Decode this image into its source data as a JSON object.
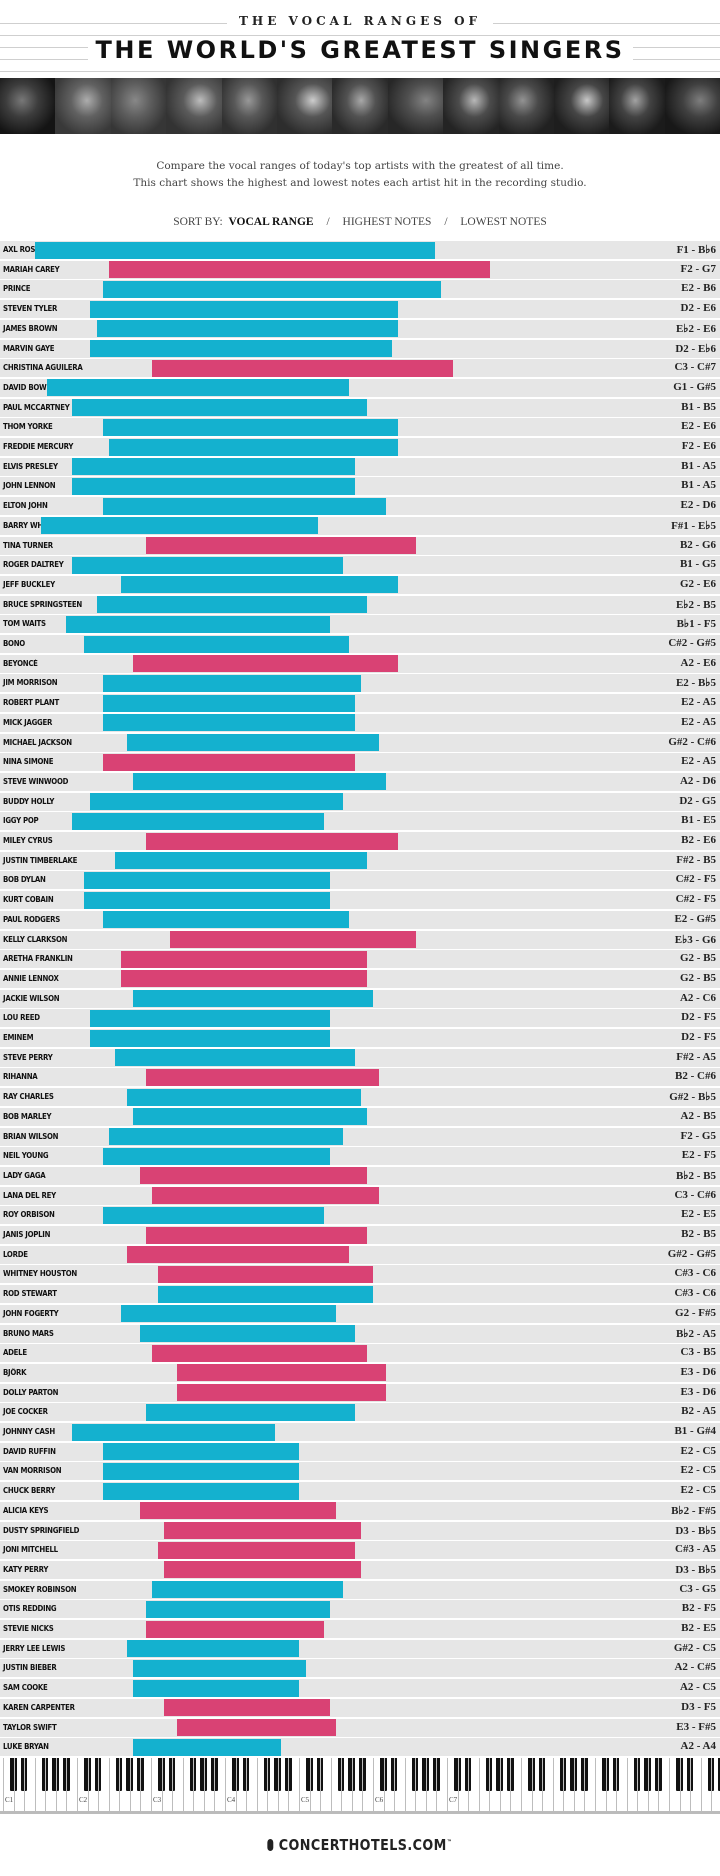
{
  "header": {
    "kicker": "THE VOCAL RANGES OF",
    "title": "THE WORLD'S GREATEST SINGERS",
    "description_line1": "Compare the vocal ranges of today's top artists with the greatest of all time.",
    "description_line2": "This chart shows the highest and lowest notes each artist hit in the recording studio."
  },
  "sort": {
    "label": "SORT BY:",
    "options": [
      "VOCAL RANGE",
      "HIGHEST NOTES",
      "LOWEST NOTES"
    ],
    "active": "VOCAL RANGE"
  },
  "colors": {
    "male": "#14b1cf",
    "female": "#d94274",
    "row_bg": "#e6e6e6"
  },
  "footer": {
    "brand": "CONCERTHOTELS.COM",
    "trademark": "™",
    "icon": "microphone-icon"
  },
  "chart_data": {
    "type": "bar",
    "orientation": "horizontal floating range",
    "x_axis": {
      "tick_labels": [
        "C1",
        "C2",
        "C3",
        "C4",
        "C5",
        "C6",
        "C7"
      ],
      "range": [
        "C1",
        "C7+"
      ]
    },
    "groups": {
      "cyan": "male",
      "pink": "female"
    },
    "rows": [
      {
        "name": "AXL ROSE",
        "low": "F1",
        "high": "B♭6",
        "label": "F1 - B♭6",
        "color": "cyan"
      },
      {
        "name": "MARIAH CAREY",
        "low": "F2",
        "high": "G7",
        "label": "F2 - G7",
        "color": "pink"
      },
      {
        "name": "PRINCE",
        "low": "E2",
        "high": "B6",
        "label": "E2 - B6",
        "color": "cyan"
      },
      {
        "name": "STEVEN TYLER",
        "low": "D2",
        "high": "E6",
        "label": "D2 - E6",
        "color": "cyan"
      },
      {
        "name": "JAMES BROWN",
        "low": "E♭2",
        "high": "E6",
        "label": "E♭2 - E6",
        "color": "cyan"
      },
      {
        "name": "MARVIN GAYE",
        "low": "D2",
        "high": "E♭6",
        "label": "D2 - E♭6",
        "color": "cyan"
      },
      {
        "name": "CHRISTINA AGUILERA",
        "low": "C3",
        "high": "C#7",
        "label": "C3 - C#7",
        "color": "pink"
      },
      {
        "name": "DAVID BOWIE",
        "low": "G1",
        "high": "G#5",
        "label": "G1 - G#5",
        "color": "cyan"
      },
      {
        "name": "PAUL MCCARTNEY",
        "low": "B1",
        "high": "B5",
        "label": "B1 - B5",
        "color": "cyan"
      },
      {
        "name": "THOM YORKE",
        "low": "E2",
        "high": "E6",
        "label": "E2 - E6",
        "color": "cyan"
      },
      {
        "name": "FREDDIE MERCURY",
        "low": "F2",
        "high": "E6",
        "label": "F2 - E6",
        "color": "cyan"
      },
      {
        "name": "ELVIS PRESLEY",
        "low": "B1",
        "high": "A5",
        "label": "B1 - A5",
        "color": "cyan"
      },
      {
        "name": "JOHN LENNON",
        "low": "B1",
        "high": "A5",
        "label": "B1 - A5",
        "color": "cyan"
      },
      {
        "name": "ELTON JOHN",
        "low": "E2",
        "high": "D6",
        "label": "E2 - D6",
        "color": "cyan"
      },
      {
        "name": "BARRY WHITE",
        "low": "F#1",
        "high": "E♭5",
        "label": "F#1 - E♭5",
        "color": "cyan"
      },
      {
        "name": "TINA TURNER",
        "low": "B2",
        "high": "G6",
        "label": "B2 - G6",
        "color": "pink"
      },
      {
        "name": "ROGER DALTREY",
        "low": "B1",
        "high": "G5",
        "label": "B1 - G5",
        "color": "cyan"
      },
      {
        "name": "JEFF BUCKLEY",
        "low": "G2",
        "high": "E6",
        "label": "G2 - E6",
        "color": "cyan"
      },
      {
        "name": "BRUCE SPRINGSTEEN",
        "low": "E♭2",
        "high": "B5",
        "label": "E♭2 - B5",
        "color": "cyan"
      },
      {
        "name": "TOM WAITS",
        "low": "B♭1",
        "high": "F5",
        "label": "B♭1 - F5",
        "color": "cyan"
      },
      {
        "name": "BONO",
        "low": "C#2",
        "high": "G#5",
        "label": "C#2 - G#5",
        "color": "cyan"
      },
      {
        "name": "BEYONCÉ",
        "low": "A2",
        "high": "E6",
        "label": "A2 - E6",
        "color": "pink"
      },
      {
        "name": "JIM MORRISON",
        "low": "E2",
        "high": "B♭5",
        "label": "E2 - B♭5",
        "color": "cyan"
      },
      {
        "name": "ROBERT PLANT",
        "low": "E2",
        "high": "A5",
        "label": "E2 - A5",
        "color": "cyan"
      },
      {
        "name": "MICK JAGGER",
        "low": "E2",
        "high": "A5",
        "label": "E2 - A5",
        "color": "cyan"
      },
      {
        "name": "MICHAEL JACKSON",
        "low": "G#2",
        "high": "C#6",
        "label": "G#2 - C#6",
        "color": "cyan"
      },
      {
        "name": "NINA SIMONE",
        "low": "E2",
        "high": "A5",
        "label": "E2 - A5",
        "color": "pink"
      },
      {
        "name": "STEVE WINWOOD",
        "low": "A2",
        "high": "D6",
        "label": "A2 - D6",
        "color": "cyan"
      },
      {
        "name": "BUDDY HOLLY",
        "low": "D2",
        "high": "G5",
        "label": "D2 - G5",
        "color": "cyan"
      },
      {
        "name": "IGGY POP",
        "low": "B1",
        "high": "E5",
        "label": "B1 - E5",
        "color": "cyan"
      },
      {
        "name": "MILEY CYRUS",
        "low": "B2",
        "high": "E6",
        "label": "B2 - E6",
        "color": "pink"
      },
      {
        "name": "JUSTIN TIMBERLAKE",
        "low": "F#2",
        "high": "B5",
        "label": "F#2 - B5",
        "color": "cyan"
      },
      {
        "name": "BOB DYLAN",
        "low": "C#2",
        "high": "F5",
        "label": "C#2 - F5",
        "color": "cyan"
      },
      {
        "name": "KURT COBAIN",
        "low": "C#2",
        "high": "F5",
        "label": "C#2 - F5",
        "color": "cyan"
      },
      {
        "name": "PAUL RODGERS",
        "low": "E2",
        "high": "G#5",
        "label": "E2 - G#5",
        "color": "cyan"
      },
      {
        "name": "KELLY CLARKSON",
        "low": "E♭3",
        "high": "G6",
        "label": "E♭3 - G6",
        "color": "pink"
      },
      {
        "name": "ARETHA FRANKLIN",
        "low": "G2",
        "high": "B5",
        "label": "G2 - B5",
        "color": "pink"
      },
      {
        "name": "ANNIE LENNOX",
        "low": "G2",
        "high": "B5",
        "label": "G2 - B5",
        "color": "pink"
      },
      {
        "name": "JACKIE WILSON",
        "low": "A2",
        "high": "C6",
        "label": "A2 - C6",
        "color": "cyan"
      },
      {
        "name": "LOU REED",
        "low": "D2",
        "high": "F5",
        "label": "D2 - F5",
        "color": "cyan"
      },
      {
        "name": "EMINEM",
        "low": "D2",
        "high": "F5",
        "label": "D2 - F5",
        "color": "cyan"
      },
      {
        "name": "STEVE PERRY",
        "low": "F#2",
        "high": "A5",
        "label": "F#2 - A5",
        "color": "cyan"
      },
      {
        "name": "RIHANNA",
        "low": "B2",
        "high": "C#6",
        "label": "B2 - C#6",
        "color": "pink"
      },
      {
        "name": "RAY CHARLES",
        "low": "G#2",
        "high": "B♭5",
        "label": "G#2 - B♭5",
        "color": "cyan"
      },
      {
        "name": "BOB MARLEY",
        "low": "A2",
        "high": "B5",
        "label": "A2 - B5",
        "color": "cyan"
      },
      {
        "name": "BRIAN WILSON",
        "low": "F2",
        "high": "G5",
        "label": "F2 - G5",
        "color": "cyan"
      },
      {
        "name": "NEIL YOUNG",
        "low": "E2",
        "high": "F5",
        "label": "E2 - F5",
        "color": "cyan"
      },
      {
        "name": "LADY GAGA",
        "low": "B♭2",
        "high": "B5",
        "label": "B♭2 - B5",
        "color": "pink"
      },
      {
        "name": "LANA DEL REY",
        "low": "C3",
        "high": "C#6",
        "label": "C3 - C#6",
        "color": "pink"
      },
      {
        "name": "ROY ORBISON",
        "low": "E2",
        "high": "E5",
        "label": "E2 - E5",
        "color": "cyan"
      },
      {
        "name": "JANIS JOPLIN",
        "low": "B2",
        "high": "B5",
        "label": "B2 - B5",
        "color": "pink"
      },
      {
        "name": "LORDE",
        "low": "G#2",
        "high": "G#5",
        "label": "G#2 - G#5",
        "color": "pink"
      },
      {
        "name": "WHITNEY HOUSTON",
        "low": "C#3",
        "high": "C6",
        "label": "C#3 - C6",
        "color": "pink"
      },
      {
        "name": "ROD STEWART",
        "low": "C#3",
        "high": "C6",
        "label": "C#3 - C6",
        "color": "cyan"
      },
      {
        "name": "JOHN FOGERTY",
        "low": "G2",
        "high": "F#5",
        "label": "G2 - F#5",
        "color": "cyan"
      },
      {
        "name": "BRUNO MARS",
        "low": "B♭2",
        "high": "A5",
        "label": "B♭2 - A5",
        "color": "cyan"
      },
      {
        "name": "ADELE",
        "low": "C3",
        "high": "B5",
        "label": "C3 - B5",
        "color": "pink"
      },
      {
        "name": "BJÖRK",
        "low": "E3",
        "high": "D6",
        "label": "E3 - D6",
        "color": "pink"
      },
      {
        "name": "DOLLY PARTON",
        "low": "E3",
        "high": "D6",
        "label": "E3 - D6",
        "color": "pink"
      },
      {
        "name": "JOE COCKER",
        "low": "B2",
        "high": "A5",
        "label": "B2 - A5",
        "color": "cyan"
      },
      {
        "name": "JOHNNY CASH",
        "low": "B1",
        "high": "G#4",
        "label": "B1 - G#4",
        "color": "cyan"
      },
      {
        "name": "DAVID RUFFIN",
        "low": "E2",
        "high": "C5",
        "label": "E2 - C5",
        "color": "cyan"
      },
      {
        "name": "VAN MORRISON",
        "low": "E2",
        "high": "C5",
        "label": "E2 - C5",
        "color": "cyan"
      },
      {
        "name": "CHUCK BERRY",
        "low": "E2",
        "high": "C5",
        "label": "E2 - C5",
        "color": "cyan"
      },
      {
        "name": "ALICIA KEYS",
        "low": "B♭2",
        "high": "F#5",
        "label": "B♭2 - F#5",
        "color": "pink"
      },
      {
        "name": "DUSTY SPRINGFIELD",
        "low": "D3",
        "high": "B♭5",
        "label": "D3 - B♭5",
        "color": "pink"
      },
      {
        "name": "JONI MITCHELL",
        "low": "C#3",
        "high": "A5",
        "label": "C#3 - A5",
        "color": "pink"
      },
      {
        "name": "KATY PERRY",
        "low": "D3",
        "high": "B♭5",
        "label": "D3 - B♭5",
        "color": "pink"
      },
      {
        "name": "SMOKEY ROBINSON",
        "low": "C3",
        "high": "G5",
        "label": "C3 - G5",
        "color": "cyan"
      },
      {
        "name": "OTIS REDDING",
        "low": "B2",
        "high": "F5",
        "label": "B2 - F5",
        "color": "cyan"
      },
      {
        "name": "STEVIE NICKS",
        "low": "B2",
        "high": "E5",
        "label": "B2 - E5",
        "color": "pink"
      },
      {
        "name": "JERRY LEE LEWIS",
        "low": "G#2",
        "high": "C5",
        "label": "G#2 - C5",
        "color": "cyan"
      },
      {
        "name": "JUSTIN BIEBER",
        "low": "A2",
        "high": "C#5",
        "label": "A2 - C#5",
        "color": "cyan"
      },
      {
        "name": "SAM COOKE",
        "low": "A2",
        "high": "C5",
        "label": "A2 - C5",
        "color": "cyan"
      },
      {
        "name": "KAREN CARPENTER",
        "low": "D3",
        "high": "F5",
        "label": "D3 - F5",
        "color": "pink"
      },
      {
        "name": "TAYLOR SWIFT",
        "low": "E3",
        "high": "F#5",
        "label": "E3 - F#5",
        "color": "pink"
      },
      {
        "name": "LUKE BRYAN",
        "low": "A2",
        "high": "A4",
        "label": "A2 - A4",
        "color": "cyan"
      }
    ]
  }
}
